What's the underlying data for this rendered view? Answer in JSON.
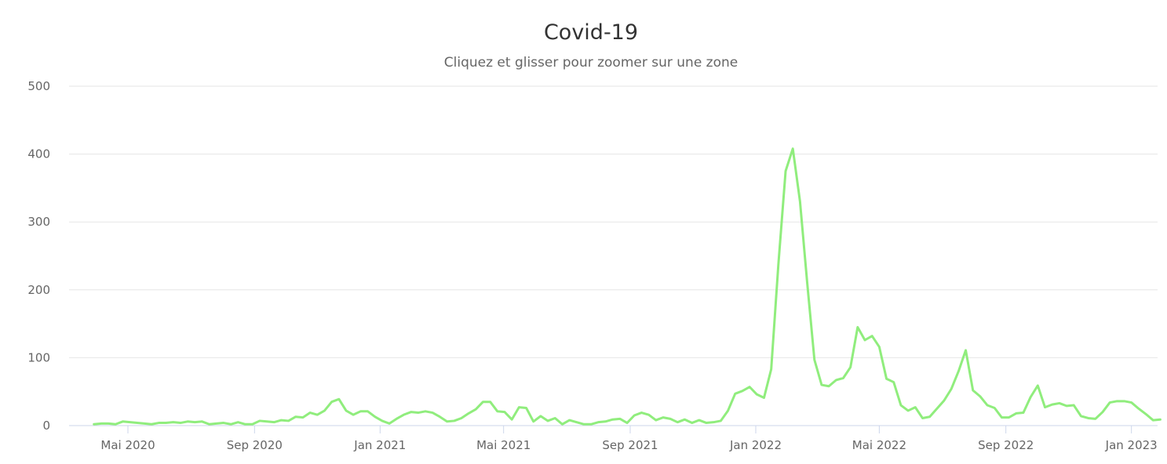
{
  "chart_data": {
    "type": "line",
    "title": "Covid-19",
    "subtitle": "Cliquez et glisser pour zoomer sur une zone",
    "xlabel": "",
    "ylabel": "",
    "ylim": [
      0,
      500
    ],
    "y_ticks": [
      "0",
      "100",
      "200",
      "300",
      "400",
      "500"
    ],
    "x_ticks": [
      {
        "date": "2020-05-01",
        "label": "Mai 2020"
      },
      {
        "date": "2020-09-01",
        "label": "Sep 2020"
      },
      {
        "date": "2021-01-01",
        "label": "Jan 2021"
      },
      {
        "date": "2021-05-01",
        "label": "Mai 2021"
      },
      {
        "date": "2021-09-01",
        "label": "Sep 2021"
      },
      {
        "date": "2022-01-01",
        "label": "Jan 2022"
      },
      {
        "date": "2022-05-01",
        "label": "Mai 2022"
      },
      {
        "date": "2022-09-01",
        "label": "Sep 2022"
      },
      {
        "date": "2023-01-01",
        "label": "Jan 2023"
      }
    ],
    "grid": true,
    "legend": "none",
    "series_color": "#90ed7d",
    "series": [
      {
        "points": [
          [
            "2020-03-29",
            2
          ],
          [
            "2020-04-05",
            3
          ],
          [
            "2020-04-12",
            3
          ],
          [
            "2020-04-19",
            2
          ],
          [
            "2020-04-26",
            6
          ],
          [
            "2020-05-03",
            5
          ],
          [
            "2020-05-10",
            4
          ],
          [
            "2020-05-17",
            3
          ],
          [
            "2020-05-24",
            2
          ],
          [
            "2020-05-31",
            4
          ],
          [
            "2020-06-07",
            4
          ],
          [
            "2020-06-14",
            5
          ],
          [
            "2020-06-21",
            4
          ],
          [
            "2020-06-28",
            6
          ],
          [
            "2020-07-05",
            5
          ],
          [
            "2020-07-12",
            6
          ],
          [
            "2020-07-19",
            2
          ],
          [
            "2020-07-26",
            3
          ],
          [
            "2020-08-02",
            4
          ],
          [
            "2020-08-09",
            2
          ],
          [
            "2020-08-16",
            5
          ],
          [
            "2020-08-23",
            2
          ],
          [
            "2020-08-30",
            2
          ],
          [
            "2020-09-06",
            7
          ],
          [
            "2020-09-13",
            6
          ],
          [
            "2020-09-20",
            5
          ],
          [
            "2020-09-27",
            8
          ],
          [
            "2020-10-04",
            7
          ],
          [
            "2020-10-11",
            13
          ],
          [
            "2020-10-18",
            12
          ],
          [
            "2020-10-25",
            19
          ],
          [
            "2020-11-01",
            16
          ],
          [
            "2020-11-08",
            22
          ],
          [
            "2020-11-15",
            35
          ],
          [
            "2020-11-22",
            39
          ],
          [
            "2020-11-29",
            22
          ],
          [
            "2020-12-06",
            16
          ],
          [
            "2020-12-13",
            21
          ],
          [
            "2020-12-20",
            21
          ],
          [
            "2020-12-27",
            13
          ],
          [
            "2021-01-03",
            7
          ],
          [
            "2021-01-10",
            3
          ],
          [
            "2021-01-17",
            10
          ],
          [
            "2021-01-24",
            16
          ],
          [
            "2021-01-31",
            20
          ],
          [
            "2021-02-07",
            19
          ],
          [
            "2021-02-14",
            21
          ],
          [
            "2021-02-21",
            19
          ],
          [
            "2021-02-28",
            13
          ],
          [
            "2021-03-07",
            6
          ],
          [
            "2021-03-14",
            7
          ],
          [
            "2021-03-21",
            11
          ],
          [
            "2021-03-28",
            18
          ],
          [
            "2021-04-04",
            24
          ],
          [
            "2021-04-11",
            35
          ],
          [
            "2021-04-18",
            35
          ],
          [
            "2021-04-25",
            21
          ],
          [
            "2021-05-02",
            20
          ],
          [
            "2021-05-09",
            9
          ],
          [
            "2021-05-16",
            27
          ],
          [
            "2021-05-23",
            26
          ],
          [
            "2021-05-30",
            6
          ],
          [
            "2021-06-06",
            14
          ],
          [
            "2021-06-13",
            7
          ],
          [
            "2021-06-20",
            11
          ],
          [
            "2021-06-27",
            2
          ],
          [
            "2021-07-04",
            8
          ],
          [
            "2021-07-11",
            5
          ],
          [
            "2021-07-18",
            2
          ],
          [
            "2021-07-25",
            2
          ],
          [
            "2021-08-01",
            5
          ],
          [
            "2021-08-08",
            6
          ],
          [
            "2021-08-15",
            9
          ],
          [
            "2021-08-22",
            10
          ],
          [
            "2021-08-29",
            4
          ],
          [
            "2021-09-05",
            15
          ],
          [
            "2021-09-12",
            19
          ],
          [
            "2021-09-19",
            16
          ],
          [
            "2021-09-26",
            8
          ],
          [
            "2021-10-03",
            12
          ],
          [
            "2021-10-10",
            10
          ],
          [
            "2021-10-17",
            5
          ],
          [
            "2021-10-24",
            9
          ],
          [
            "2021-10-31",
            4
          ],
          [
            "2021-11-07",
            8
          ],
          [
            "2021-11-14",
            4
          ],
          [
            "2021-11-21",
            5
          ],
          [
            "2021-11-28",
            7
          ],
          [
            "2021-12-05",
            22
          ],
          [
            "2021-12-12",
            47
          ],
          [
            "2021-12-19",
            51
          ],
          [
            "2021-12-26",
            57
          ],
          [
            "2022-01-02",
            46
          ],
          [
            "2022-01-09",
            41
          ],
          [
            "2022-01-16",
            83
          ],
          [
            "2022-01-23",
            238
          ],
          [
            "2022-01-30",
            375
          ],
          [
            "2022-02-06",
            408
          ],
          [
            "2022-02-13",
            330
          ],
          [
            "2022-02-20",
            210
          ],
          [
            "2022-02-27",
            97
          ],
          [
            "2022-03-06",
            60
          ],
          [
            "2022-03-13",
            58
          ],
          [
            "2022-03-20",
            67
          ],
          [
            "2022-03-27",
            70
          ],
          [
            "2022-04-03",
            86
          ],
          [
            "2022-04-10",
            145
          ],
          [
            "2022-04-17",
            126
          ],
          [
            "2022-04-24",
            132
          ],
          [
            "2022-05-01",
            116
          ],
          [
            "2022-05-08",
            69
          ],
          [
            "2022-05-15",
            64
          ],
          [
            "2022-05-22",
            30
          ],
          [
            "2022-05-29",
            22
          ],
          [
            "2022-06-05",
            27
          ],
          [
            "2022-06-12",
            11
          ],
          [
            "2022-06-19",
            13
          ],
          [
            "2022-06-26",
            25
          ],
          [
            "2022-07-03",
            37
          ],
          [
            "2022-07-10",
            54
          ],
          [
            "2022-07-17",
            80
          ],
          [
            "2022-07-24",
            111
          ],
          [
            "2022-07-31",
            52
          ],
          [
            "2022-08-07",
            43
          ],
          [
            "2022-08-14",
            30
          ],
          [
            "2022-08-21",
            26
          ],
          [
            "2022-08-28",
            12
          ],
          [
            "2022-09-04",
            12
          ],
          [
            "2022-09-11",
            18
          ],
          [
            "2022-09-18",
            19
          ],
          [
            "2022-09-25",
            42
          ],
          [
            "2022-10-02",
            59
          ],
          [
            "2022-10-09",
            27
          ],
          [
            "2022-10-16",
            31
          ],
          [
            "2022-10-23",
            33
          ],
          [
            "2022-10-30",
            29
          ],
          [
            "2022-11-06",
            30
          ],
          [
            "2022-11-13",
            14
          ],
          [
            "2022-11-20",
            11
          ],
          [
            "2022-11-27",
            10
          ],
          [
            "2022-12-04",
            20
          ],
          [
            "2022-12-11",
            34
          ],
          [
            "2022-12-18",
            36
          ],
          [
            "2022-12-25",
            36
          ],
          [
            "2023-01-01",
            34
          ],
          [
            "2023-01-08",
            25
          ],
          [
            "2023-01-15",
            17
          ],
          [
            "2023-01-22",
            8
          ],
          [
            "2023-01-29",
            9
          ]
        ]
      }
    ]
  }
}
